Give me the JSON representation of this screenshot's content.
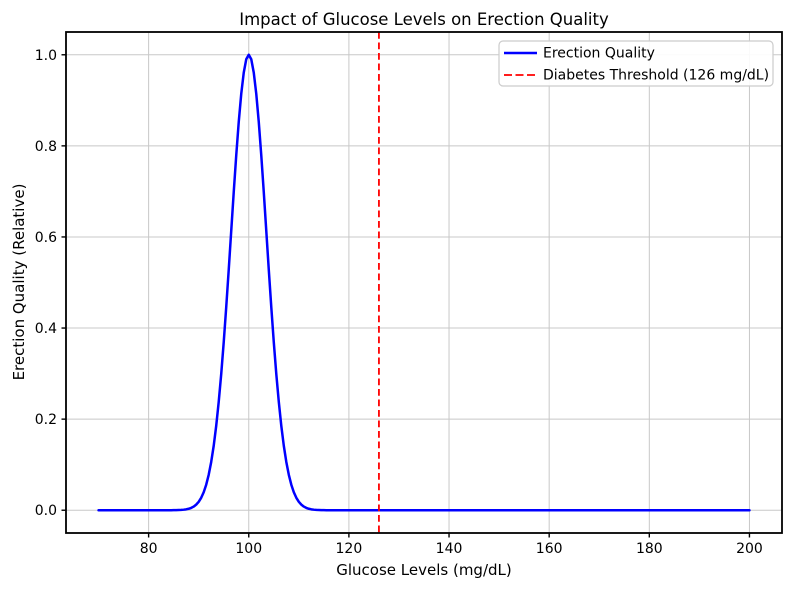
{
  "chart_data": {
    "type": "line",
    "title": "Impact of Glucose Levels on Erection Quality",
    "xlabel": "Glucose Levels (mg/dL)",
    "ylabel": "Erection Quality (Relative)",
    "xlim": [
      63.5,
      206.5
    ],
    "ylim": [
      -0.05,
      1.05
    ],
    "xtick_values": [
      80,
      100,
      120,
      140,
      160,
      180,
      200
    ],
    "xtick_labels": [
      "80",
      "100",
      "120",
      "140",
      "160",
      "180",
      "200"
    ],
    "ytick_values": [
      0.0,
      0.2,
      0.4,
      0.6,
      0.8,
      1.0
    ],
    "ytick_labels": [
      "0.0",
      "0.2",
      "0.4",
      "0.6",
      "0.8",
      "1.0"
    ],
    "grid": true,
    "grid_color": "#c8c8c8",
    "background_color": "#ffffff",
    "series": [
      {
        "name": "Erection Quality",
        "shape": "gaussian",
        "color": "#0000ff",
        "line_style": "solid",
        "line_width": 2.5,
        "x_range": [
          70,
          200
        ],
        "peak": {
          "x": 100,
          "y": 1.0
        },
        "sigma": 3.54,
        "baseline": 0.0,
        "sample_points": [
          [
            70,
            0
          ],
          [
            80,
            0
          ],
          [
            85,
            0.0001
          ],
          [
            88,
            0.0032
          ],
          [
            90,
            0.018
          ],
          [
            92,
            0.078
          ],
          [
            94,
            0.238
          ],
          [
            95,
            0.369
          ],
          [
            96,
            0.528
          ],
          [
            97,
            0.698
          ],
          [
            98,
            0.852
          ],
          [
            99,
            0.961
          ],
          [
            100,
            1.0
          ],
          [
            101,
            0.961
          ],
          [
            102,
            0.852
          ],
          [
            103,
            0.698
          ],
          [
            104,
            0.528
          ],
          [
            105,
            0.369
          ],
          [
            106,
            0.238
          ],
          [
            108,
            0.078
          ],
          [
            110,
            0.018
          ],
          [
            112,
            0.0032
          ],
          [
            115,
            0.0001
          ],
          [
            120,
            0
          ],
          [
            140,
            0
          ],
          [
            160,
            0
          ],
          [
            180,
            0
          ],
          [
            200,
            0
          ]
        ]
      }
    ],
    "threshold": {
      "label": "Diabetes Threshold (126 mg/dL)",
      "x": 126,
      "color": "#ff0000",
      "line_style": "dashed",
      "line_width": 1.8
    },
    "legend": {
      "position": "upper right",
      "items": [
        {
          "label": "Erection Quality",
          "color": "#0000ff",
          "style": "solid"
        },
        {
          "label": "Diabetes Threshold (126 mg/dL)",
          "color": "#ff0000",
          "style": "dashed"
        }
      ]
    }
  }
}
